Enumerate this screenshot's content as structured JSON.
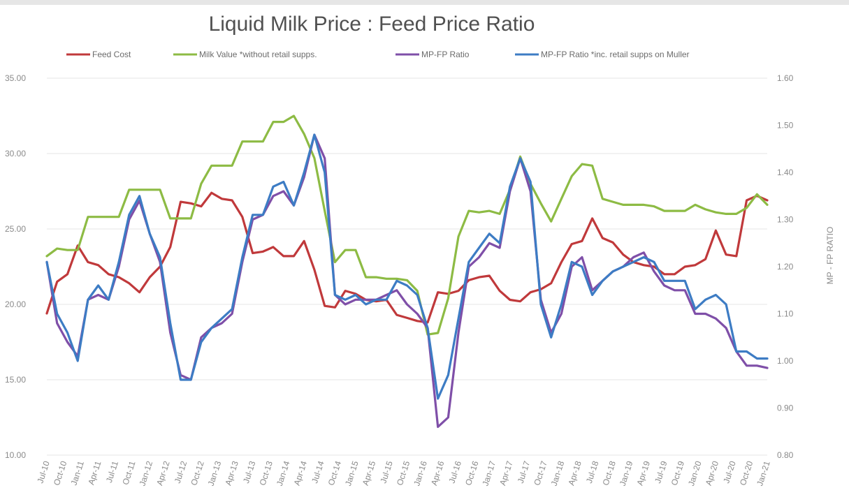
{
  "chart_data": {
    "type": "line",
    "title": "Liquid Milk Price : Feed Price Ratio",
    "ylabel": "",
    "y2label": "MP - FP RATIO",
    "ylim": [
      10,
      35
    ],
    "y2lim": [
      0.8,
      1.6
    ],
    "y_ticks": [
      "35.00",
      "30.00",
      "25.00",
      "20.00",
      "15.00",
      "10.00"
    ],
    "y2_ticks": [
      "1.60",
      "1.50",
      "1.40",
      "1.30",
      "1.20",
      "1.10",
      "1.00",
      "0.90",
      "0.80"
    ],
    "x_ticks": [
      "Jul-10",
      "Oct-10",
      "Jan-11",
      "Apr-11",
      "Jul-11",
      "Oct-11",
      "Jan-12",
      "Apr-12",
      "Jul-12",
      "Oct-12",
      "Jan-13",
      "Apr-13",
      "Jul-13",
      "Oct-13",
      "Jan-14",
      "Apr-14",
      "Jul-14",
      "Oct-14",
      "Jan-15",
      "Apr-15",
      "Jul-15",
      "Oct-15",
      "Jan-16",
      "Apr-16",
      "Jul-16",
      "Oct-16",
      "Jan-17",
      "Apr-17",
      "Jul-17",
      "Oct-17",
      "Jan-18",
      "Apr-18",
      "Jul-18",
      "Oct-18",
      "Jan-19",
      "Apr-19",
      "Jul-19",
      "Oct-19",
      "Jan-20",
      "Apr-20",
      "Jul-20",
      "Oct-20",
      "Jan-21"
    ],
    "legend_position": "top",
    "grid": true,
    "series": [
      {
        "name": "Feed Cost",
        "axis": "left",
        "color": "#c0393b",
        "values": [
          19.4,
          21.5,
          22.0,
          23.9,
          22.8,
          22.6,
          22.0,
          21.8,
          21.4,
          20.8,
          21.8,
          22.5,
          23.8,
          26.8,
          26.7,
          26.5,
          27.4,
          27.0,
          26.9,
          25.8,
          23.4,
          23.5,
          23.8,
          23.2,
          23.2,
          24.2,
          22.3,
          19.9,
          19.8,
          20.9,
          20.7,
          20.3,
          20.2,
          20.3,
          19.3,
          19.1,
          18.9,
          18.8,
          20.8,
          20.7,
          20.9,
          21.6,
          21.8,
          21.9,
          20.9,
          20.3,
          20.2,
          20.8,
          21.0,
          21.4,
          22.8,
          24.0,
          24.2,
          25.7,
          24.4,
          24.1,
          23.3,
          22.8,
          22.6,
          22.5,
          22.0,
          22.0,
          22.5,
          22.6,
          23.0,
          24.9,
          23.3,
          23.2,
          26.9,
          27.2,
          26.9
        ]
      },
      {
        "name": "Milk Value *without retail supps.",
        "axis": "left",
        "color": "#8dbb44",
        "values": [
          23.2,
          23.7,
          23.6,
          23.6,
          25.8,
          25.8,
          25.8,
          25.8,
          27.6,
          27.6,
          27.6,
          27.6,
          25.7,
          25.7,
          25.7,
          28.0,
          29.2,
          29.2,
          29.2,
          30.8,
          30.8,
          30.8,
          32.1,
          32.1,
          32.5,
          31.3,
          29.7,
          26.2,
          22.8,
          23.6,
          23.6,
          21.8,
          21.8,
          21.7,
          21.7,
          21.6,
          20.9,
          18.0,
          18.1,
          20.4,
          24.5,
          26.2,
          26.1,
          26.2,
          26.0,
          27.6,
          29.8,
          28.0,
          26.7,
          25.5,
          27.0,
          28.5,
          29.3,
          29.2,
          27.0,
          26.8,
          26.6,
          26.6,
          26.6,
          26.5,
          26.2,
          26.2,
          26.2,
          26.6,
          26.3,
          26.1,
          26.0,
          26.0,
          26.4,
          27.3,
          26.6
        ]
      },
      {
        "name": "MP-FP Ratio",
        "axis": "right",
        "color": "#7f4fa8",
        "values": [
          1.21,
          1.08,
          1.04,
          1.01,
          1.13,
          1.14,
          1.13,
          1.2,
          1.3,
          1.34,
          1.27,
          1.21,
          1.06,
          0.97,
          0.96,
          1.05,
          1.07,
          1.08,
          1.1,
          1.21,
          1.3,
          1.31,
          1.35,
          1.36,
          1.33,
          1.39,
          1.48,
          1.43,
          1.14,
          1.12,
          1.13,
          1.13,
          1.13,
          1.14,
          1.15,
          1.12,
          1.1,
          1.07,
          0.86,
          0.88,
          1.06,
          1.2,
          1.22,
          1.25,
          1.24,
          1.36,
          1.43,
          1.36,
          1.13,
          1.06,
          1.1,
          1.2,
          1.22,
          1.15,
          1.17,
          1.19,
          1.2,
          1.22,
          1.23,
          1.19,
          1.16,
          1.15,
          1.15,
          1.1,
          1.1,
          1.09,
          1.07,
          1.02,
          0.99,
          0.99,
          0.985
        ]
      },
      {
        "name": "MP-FP Ratio *inc. retail supps on Muller",
        "axis": "right",
        "color": "#3d7cc4",
        "values": [
          1.21,
          1.1,
          1.06,
          1.0,
          1.13,
          1.16,
          1.13,
          1.21,
          1.31,
          1.35,
          1.27,
          1.22,
          1.08,
          0.96,
          0.96,
          1.04,
          1.07,
          1.09,
          1.11,
          1.22,
          1.31,
          1.31,
          1.37,
          1.38,
          1.33,
          1.4,
          1.48,
          1.4,
          1.14,
          1.13,
          1.14,
          1.12,
          1.13,
          1.13,
          1.17,
          1.16,
          1.14,
          1.07,
          0.92,
          0.97,
          1.09,
          1.21,
          1.24,
          1.27,
          1.25,
          1.37,
          1.43,
          1.38,
          1.12,
          1.05,
          1.12,
          1.21,
          1.2,
          1.14,
          1.17,
          1.19,
          1.2,
          1.21,
          1.22,
          1.21,
          1.17,
          1.17,
          1.17,
          1.11,
          1.13,
          1.14,
          1.12,
          1.02,
          1.02,
          1.005,
          1.005
        ]
      }
    ]
  }
}
